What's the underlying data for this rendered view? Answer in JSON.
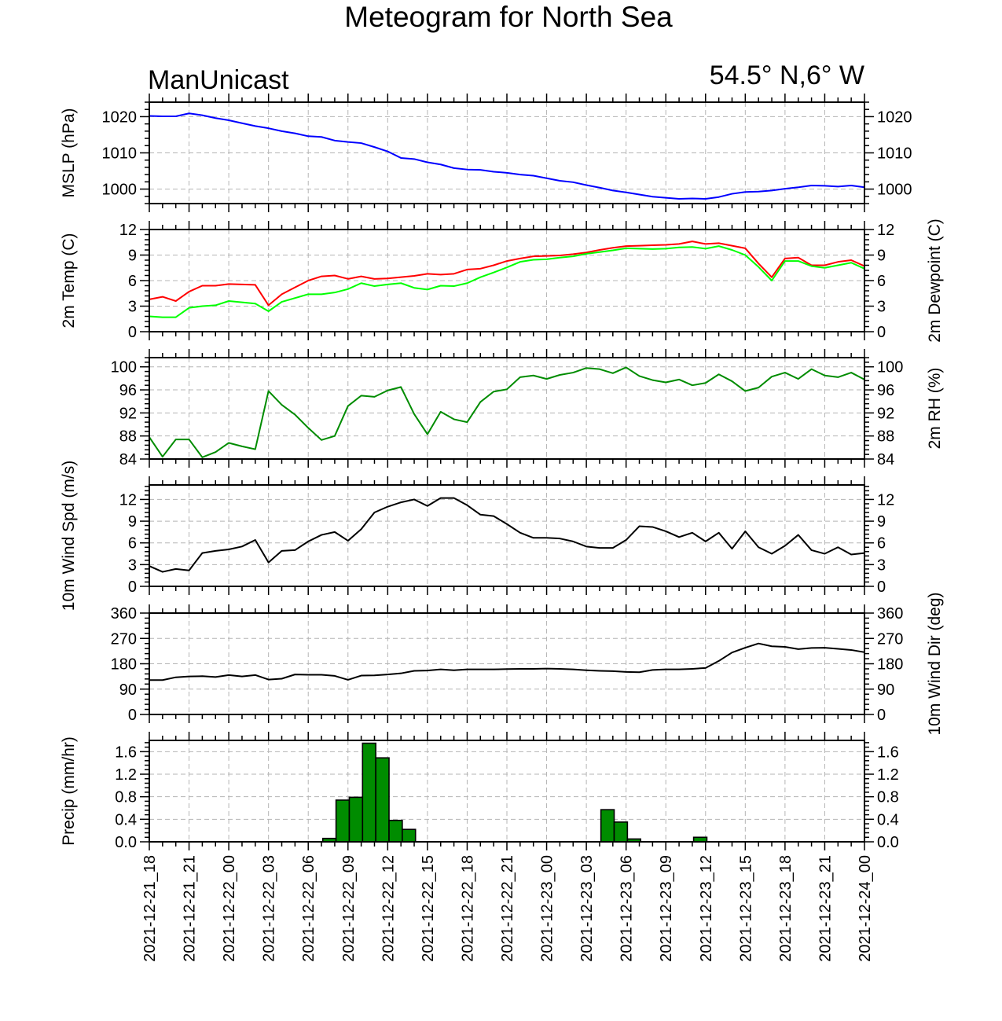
{
  "title": "Meteogram for North Sea",
  "model_label": "ManUnicast",
  "location_label": "54.5° N,6° W",
  "colors": {
    "mslp": "#0000ff",
    "temp": "#ff0000",
    "dewpoint": "#00ff00",
    "rh": "#008c00",
    "wind": "#000000",
    "precip_fill": "#008c00",
    "grid": "#b4b4b4"
  },
  "chart_data": {
    "type": "line",
    "x_unit": "hours since 2021-12-21_18",
    "x_range": [
      0,
      54
    ],
    "x_tick_labels": [
      "2021-12-21_18",
      "2021-12-21_21",
      "2021-12-22_00",
      "2021-12-22_03",
      "2021-12-22_06",
      "2021-12-22_09",
      "2021-12-22_12",
      "2021-12-22_15",
      "2021-12-22_18",
      "2021-12-22_21",
      "2021-12-23_00",
      "2021-12-23_03",
      "2021-12-23_06",
      "2021-12-23_09",
      "2021-12-23_12",
      "2021-12-23_15",
      "2021-12-23_18",
      "2021-12-23_21",
      "2021-12-24_00"
    ],
    "panels": [
      {
        "id": "mslp",
        "ylabel_left": "MSLP (hPa)",
        "ylabel_right": "",
        "ylim": [
          996,
          1024
        ],
        "yticks": [
          1000,
          1010,
          1020
        ],
        "tick_labels_left": [
          "1000",
          "1010",
          "1020"
        ],
        "tick_labels_right": [
          "1000",
          "1010",
          "1020"
        ],
        "series": [
          {
            "color_key": "mslp",
            "type": "line",
            "values": [
              1020.2,
              1020.1,
              1020.1,
              1020.9,
              1020.4,
              1019.6,
              1019.0,
              1018.2,
              1017.4,
              1016.8,
              1016.0,
              1015.4,
              1014.6,
              1014.4,
              1013.4,
              1013.0,
              1012.7,
              1011.6,
              1010.4,
              1008.6,
              1008.3,
              1007.4,
              1006.8,
              1005.8,
              1005.4,
              1005.3,
              1004.8,
              1004.5,
              1004.0,
              1003.7,
              1003.0,
              1002.3,
              1001.9,
              1001.1,
              1000.4,
              999.6,
              999.1,
              998.5,
              997.9,
              997.6,
              997.3,
              997.4,
              997.3,
              997.8,
              998.7,
              999.2,
              999.3,
              999.6,
              1000.1,
              1000.5,
              1001.0,
              1000.9,
              1000.7,
              1001.0,
              1000.5
            ]
          }
        ]
      },
      {
        "id": "temp",
        "ylabel_left": "2m Temp (C)",
        "ylabel_right": "2m Dewpoint (C)",
        "ylim": [
          0,
          12
        ],
        "yticks": [
          0,
          3,
          6,
          9,
          12
        ],
        "tick_labels_left": [
          "0",
          "3",
          "6",
          "9",
          "12"
        ],
        "tick_labels_right": [
          "0",
          "3",
          "6",
          "9",
          "12"
        ],
        "series": [
          {
            "name": "",
            "color_key": "temp",
            "type": "line",
            "values": [
              3.8,
              4.1,
              3.6,
              4.7,
              5.4,
              5.4,
              5.6,
              5.55,
              5.5,
              3.1,
              4.4,
              5.2,
              6.0,
              6.5,
              6.6,
              6.2,
              6.5,
              6.2,
              6.25,
              6.4,
              6.55,
              6.8,
              6.7,
              6.8,
              7.3,
              7.4,
              7.8,
              8.3,
              8.6,
              8.85,
              8.9,
              8.95,
              9.1,
              9.3,
              9.6,
              9.85,
              10.05,
              10.1,
              10.15,
              10.2,
              10.3,
              10.6,
              10.3,
              10.4,
              10.1,
              9.8,
              8.0,
              6.4,
              8.6,
              8.7,
              7.8,
              7.8,
              8.2,
              8.4,
              7.7
            ]
          },
          {
            "name": "",
            "color_key": "dewpoint",
            "type": "line",
            "values": [
              1.8,
              1.7,
              1.7,
              2.8,
              3.0,
              3.1,
              3.6,
              3.45,
              3.3,
              2.4,
              3.5,
              3.95,
              4.4,
              4.4,
              4.6,
              5.0,
              5.7,
              5.35,
              5.55,
              5.7,
              5.15,
              4.95,
              5.4,
              5.35,
              5.7,
              6.4,
              6.95,
              7.55,
              8.2,
              8.45,
              8.5,
              8.7,
              8.85,
              9.15,
              9.35,
              9.55,
              9.8,
              9.75,
              9.7,
              9.75,
              9.9,
              9.95,
              9.75,
              10.05,
              9.6,
              9.0,
              7.6,
              6.0,
              8.3,
              8.3,
              7.7,
              7.5,
              7.8,
              8.1,
              7.4
            ]
          }
        ]
      },
      {
        "id": "rh",
        "ylabel_left": "",
        "ylabel_right": "2m RH (%)",
        "ylim": [
          84,
          101.6
        ],
        "yticks": [
          84,
          88,
          92,
          96,
          100
        ],
        "tick_labels_left": [
          "84",
          "88",
          "92",
          "96",
          "100"
        ],
        "tick_labels_right": [
          "84",
          "88",
          "92",
          "96",
          "100"
        ],
        "series": [
          {
            "color_key": "rh",
            "type": "line",
            "values": [
              87.8,
              84.4,
              87.4,
              87.4,
              84.3,
              85.2,
              86.8,
              86.2,
              85.7,
              95.8,
              93.4,
              91.7,
              89.4,
              87.3,
              88.0,
              93.2,
              95.0,
              94.8,
              95.9,
              96.5,
              91.8,
              88.3,
              92.2,
              90.9,
              90.4,
              93.9,
              95.7,
              96.1,
              98.2,
              98.5,
              97.9,
              98.6,
              99.0,
              99.8,
              99.6,
              98.9,
              99.9,
              98.4,
              97.7,
              97.3,
              97.8,
              96.8,
              97.2,
              98.7,
              97.5,
              95.8,
              96.4,
              98.3,
              99.0,
              97.9,
              99.6,
              98.5,
              98.2,
              99.0,
              97.8
            ]
          }
        ]
      },
      {
        "id": "wind",
        "ylabel_left": "10m Wind Spd (m/s)",
        "ylabel_right": "",
        "ylim": [
          0,
          14
        ],
        "yticks": [
          0,
          3,
          6,
          9,
          12
        ],
        "tick_labels_left": [
          "0",
          "3",
          "6",
          "9",
          "12"
        ],
        "tick_labels_right": [
          "0",
          "3",
          "6",
          "9",
          "12"
        ],
        "series": [
          {
            "color_key": "wind",
            "type": "line",
            "values": [
              2.8,
              2.0,
              2.4,
              2.2,
              4.6,
              4.9,
              5.1,
              5.5,
              6.4,
              3.3,
              4.9,
              5.0,
              6.2,
              7.1,
              7.5,
              6.3,
              7.9,
              10.2,
              11.0,
              11.6,
              12.0,
              11.1,
              12.2,
              12.2,
              11.2,
              9.9,
              9.7,
              8.6,
              7.4,
              6.7,
              6.7,
              6.6,
              6.2,
              5.5,
              5.3,
              5.3,
              6.4,
              8.3,
              8.2,
              7.6,
              6.8,
              7.4,
              6.2,
              7.4,
              5.2,
              7.6,
              5.4,
              4.5,
              5.6,
              7.1,
              5.0,
              4.5,
              5.4,
              4.4,
              4.6
            ]
          }
        ]
      },
      {
        "id": "winddir",
        "ylabel_left": "",
        "ylabel_right": "10m Wind Dir (deg)",
        "ylim": [
          0,
          360
        ],
        "yticks": [
          0,
          90,
          180,
          270,
          360
        ],
        "tick_labels_left": [
          "0",
          "90",
          "180",
          "270",
          "360"
        ],
        "tick_labels_right": [
          "0",
          "90",
          "180",
          "270",
          "360"
        ],
        "series": [
          {
            "color_key": "wind",
            "type": "line",
            "values": [
              122,
              122,
              132,
              135,
              136,
              133,
              140,
              135,
              140,
              124,
              127,
              142,
              141,
              141,
              137,
              123,
              138,
              139,
              142,
              146,
              155,
              156,
              160,
              157,
              160,
              160,
              160,
              161,
              162,
              162,
              163,
              162,
              160,
              157,
              155,
              154,
              151,
              150,
              158,
              160,
              160,
              162,
              165,
              190,
              220,
              237,
              252,
              242,
              240,
              232,
              236,
              237,
              233,
              229,
              221
            ]
          }
        ]
      },
      {
        "id": "precip",
        "ylabel_left": "Precip (mm/hr)",
        "ylabel_right": "",
        "ylim": [
          0,
          1.8
        ],
        "yticks": [
          0,
          0.4,
          0.8,
          1.2,
          1.6
        ],
        "tick_labels_left": [
          "0.0",
          "0.4",
          "0.8",
          "1.2",
          "1.6"
        ],
        "tick_labels_right": [
          "0.0",
          "0.4",
          "0.8",
          "1.2",
          "1.6"
        ],
        "series": [
          {
            "color_key": "precip_fill",
            "type": "bar",
            "values": [
              0,
              0,
              0,
              0,
              0,
              0,
              0,
              0,
              0,
              0,
              0,
              0,
              0,
              0.06,
              0.74,
              0.79,
              1.75,
              1.49,
              0.38,
              0.22,
              0,
              0,
              0,
              0,
              0,
              0,
              0,
              0,
              0,
              0,
              0,
              0,
              0,
              0,
              0.57,
              0.35,
              0.05,
              0,
              0,
              0,
              0,
              0.08,
              0,
              0,
              0,
              0,
              0,
              0,
              0,
              0,
              0,
              0,
              0,
              0
            ]
          }
        ]
      }
    ]
  }
}
